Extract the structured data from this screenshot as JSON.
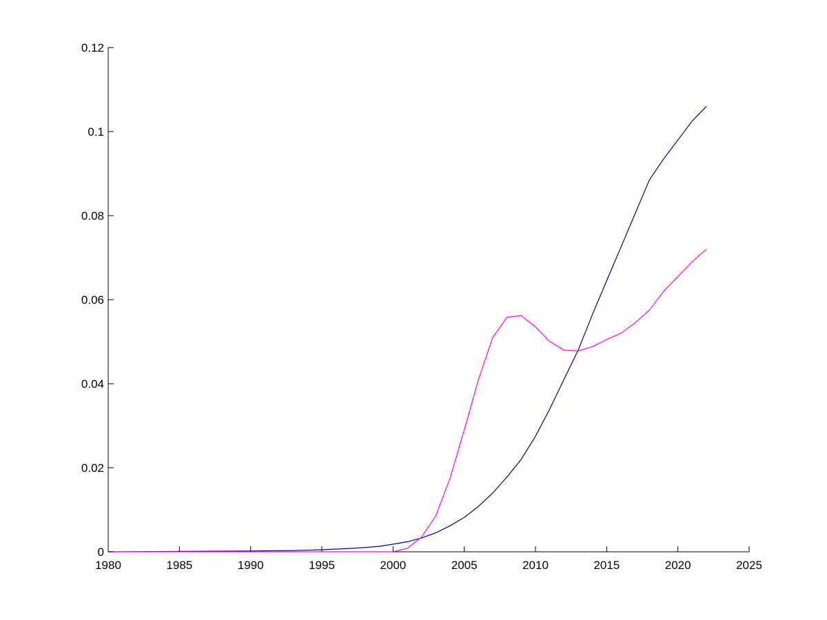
{
  "chart_data": {
    "type": "line",
    "title": "",
    "xlabel": "",
    "ylabel": "",
    "xlim": [
      1980,
      2025
    ],
    "ylim": [
      0,
      0.12
    ],
    "grid": false,
    "x_ticks": [
      "1980",
      "1985",
      "1990",
      "1995",
      "2000",
      "2005",
      "2010",
      "2015",
      "2020",
      "2025"
    ],
    "y_ticks": [
      "0",
      "0.02",
      "0.04",
      "0.06",
      "0.08",
      "0.1",
      "0.12"
    ],
    "series": [
      {
        "color": "#00008b",
        "x": [
          1980,
          1985,
          1990,
          1993,
          1995,
          1997,
          1998,
          1999,
          2000,
          2001,
          2002,
          2003,
          2004,
          2005,
          2006,
          2007,
          2008,
          2009,
          2010,
          2011,
          2012,
          2013,
          2014,
          2015,
          2016,
          2017,
          2018,
          2019,
          2020,
          2021,
          2022
        ],
        "y": [
          0,
          0.0001,
          0.0002,
          0.0003,
          0.0005,
          0.0008,
          0.001,
          0.0013,
          0.0018,
          0.0024,
          0.0033,
          0.0045,
          0.0062,
          0.0082,
          0.0108,
          0.014,
          0.0178,
          0.022,
          0.0275,
          0.034,
          0.041,
          0.048,
          0.0565,
          0.0645,
          0.0725,
          0.0805,
          0.0885,
          0.0935,
          0.098,
          0.1025,
          0.106
        ]
      },
      {
        "color": "#ff00ff",
        "x": [
          1980,
          2000,
          2001,
          2002,
          2003,
          2004,
          2005,
          2006,
          2007,
          2008,
          2009,
          2010,
          2011,
          2012,
          2013,
          2014,
          2015,
          2016,
          2017,
          2018,
          2019,
          2020,
          2021,
          2022
        ],
        "y": [
          0,
          0,
          0.0008,
          0.0035,
          0.0085,
          0.0175,
          0.029,
          0.041,
          0.051,
          0.0558,
          0.0562,
          0.0535,
          0.05,
          0.048,
          0.0478,
          0.0488,
          0.0505,
          0.052,
          0.0545,
          0.0575,
          0.062,
          0.0655,
          0.069,
          0.072
        ]
      }
    ]
  }
}
